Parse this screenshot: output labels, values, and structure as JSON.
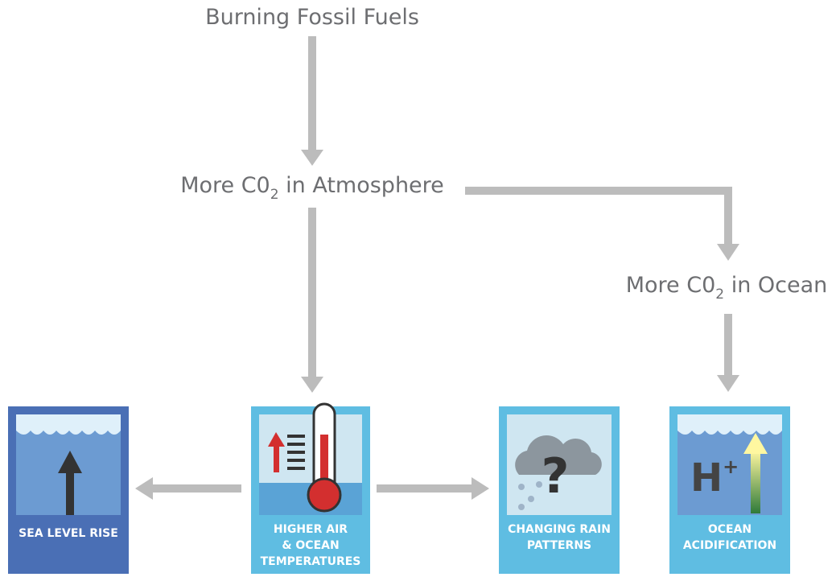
{
  "nodes": [
    {
      "text": "Burning Fossil Fuels"
    },
    {
      "text": "More C0",
      "sub": "2",
      "rest": " in Atmosphere"
    },
    {
      "text": "More C0",
      "sub": "2",
      "rest": " in Ocean"
    }
  ],
  "cards": [
    {
      "lines": [
        "SEA LEVEL RISE"
      ]
    },
    {
      "lines": [
        "HIGHER AIR",
        "& OCEAN",
        "TEMPERATURES"
      ]
    },
    {
      "lines": [
        "CHANGING RAIN",
        "PATTERNS"
      ],
      "icon": "?"
    },
    {
      "lines": [
        "OCEAN",
        "ACIDIFICATION"
      ],
      "icon": "H",
      "icon_sup": "+"
    }
  ]
}
